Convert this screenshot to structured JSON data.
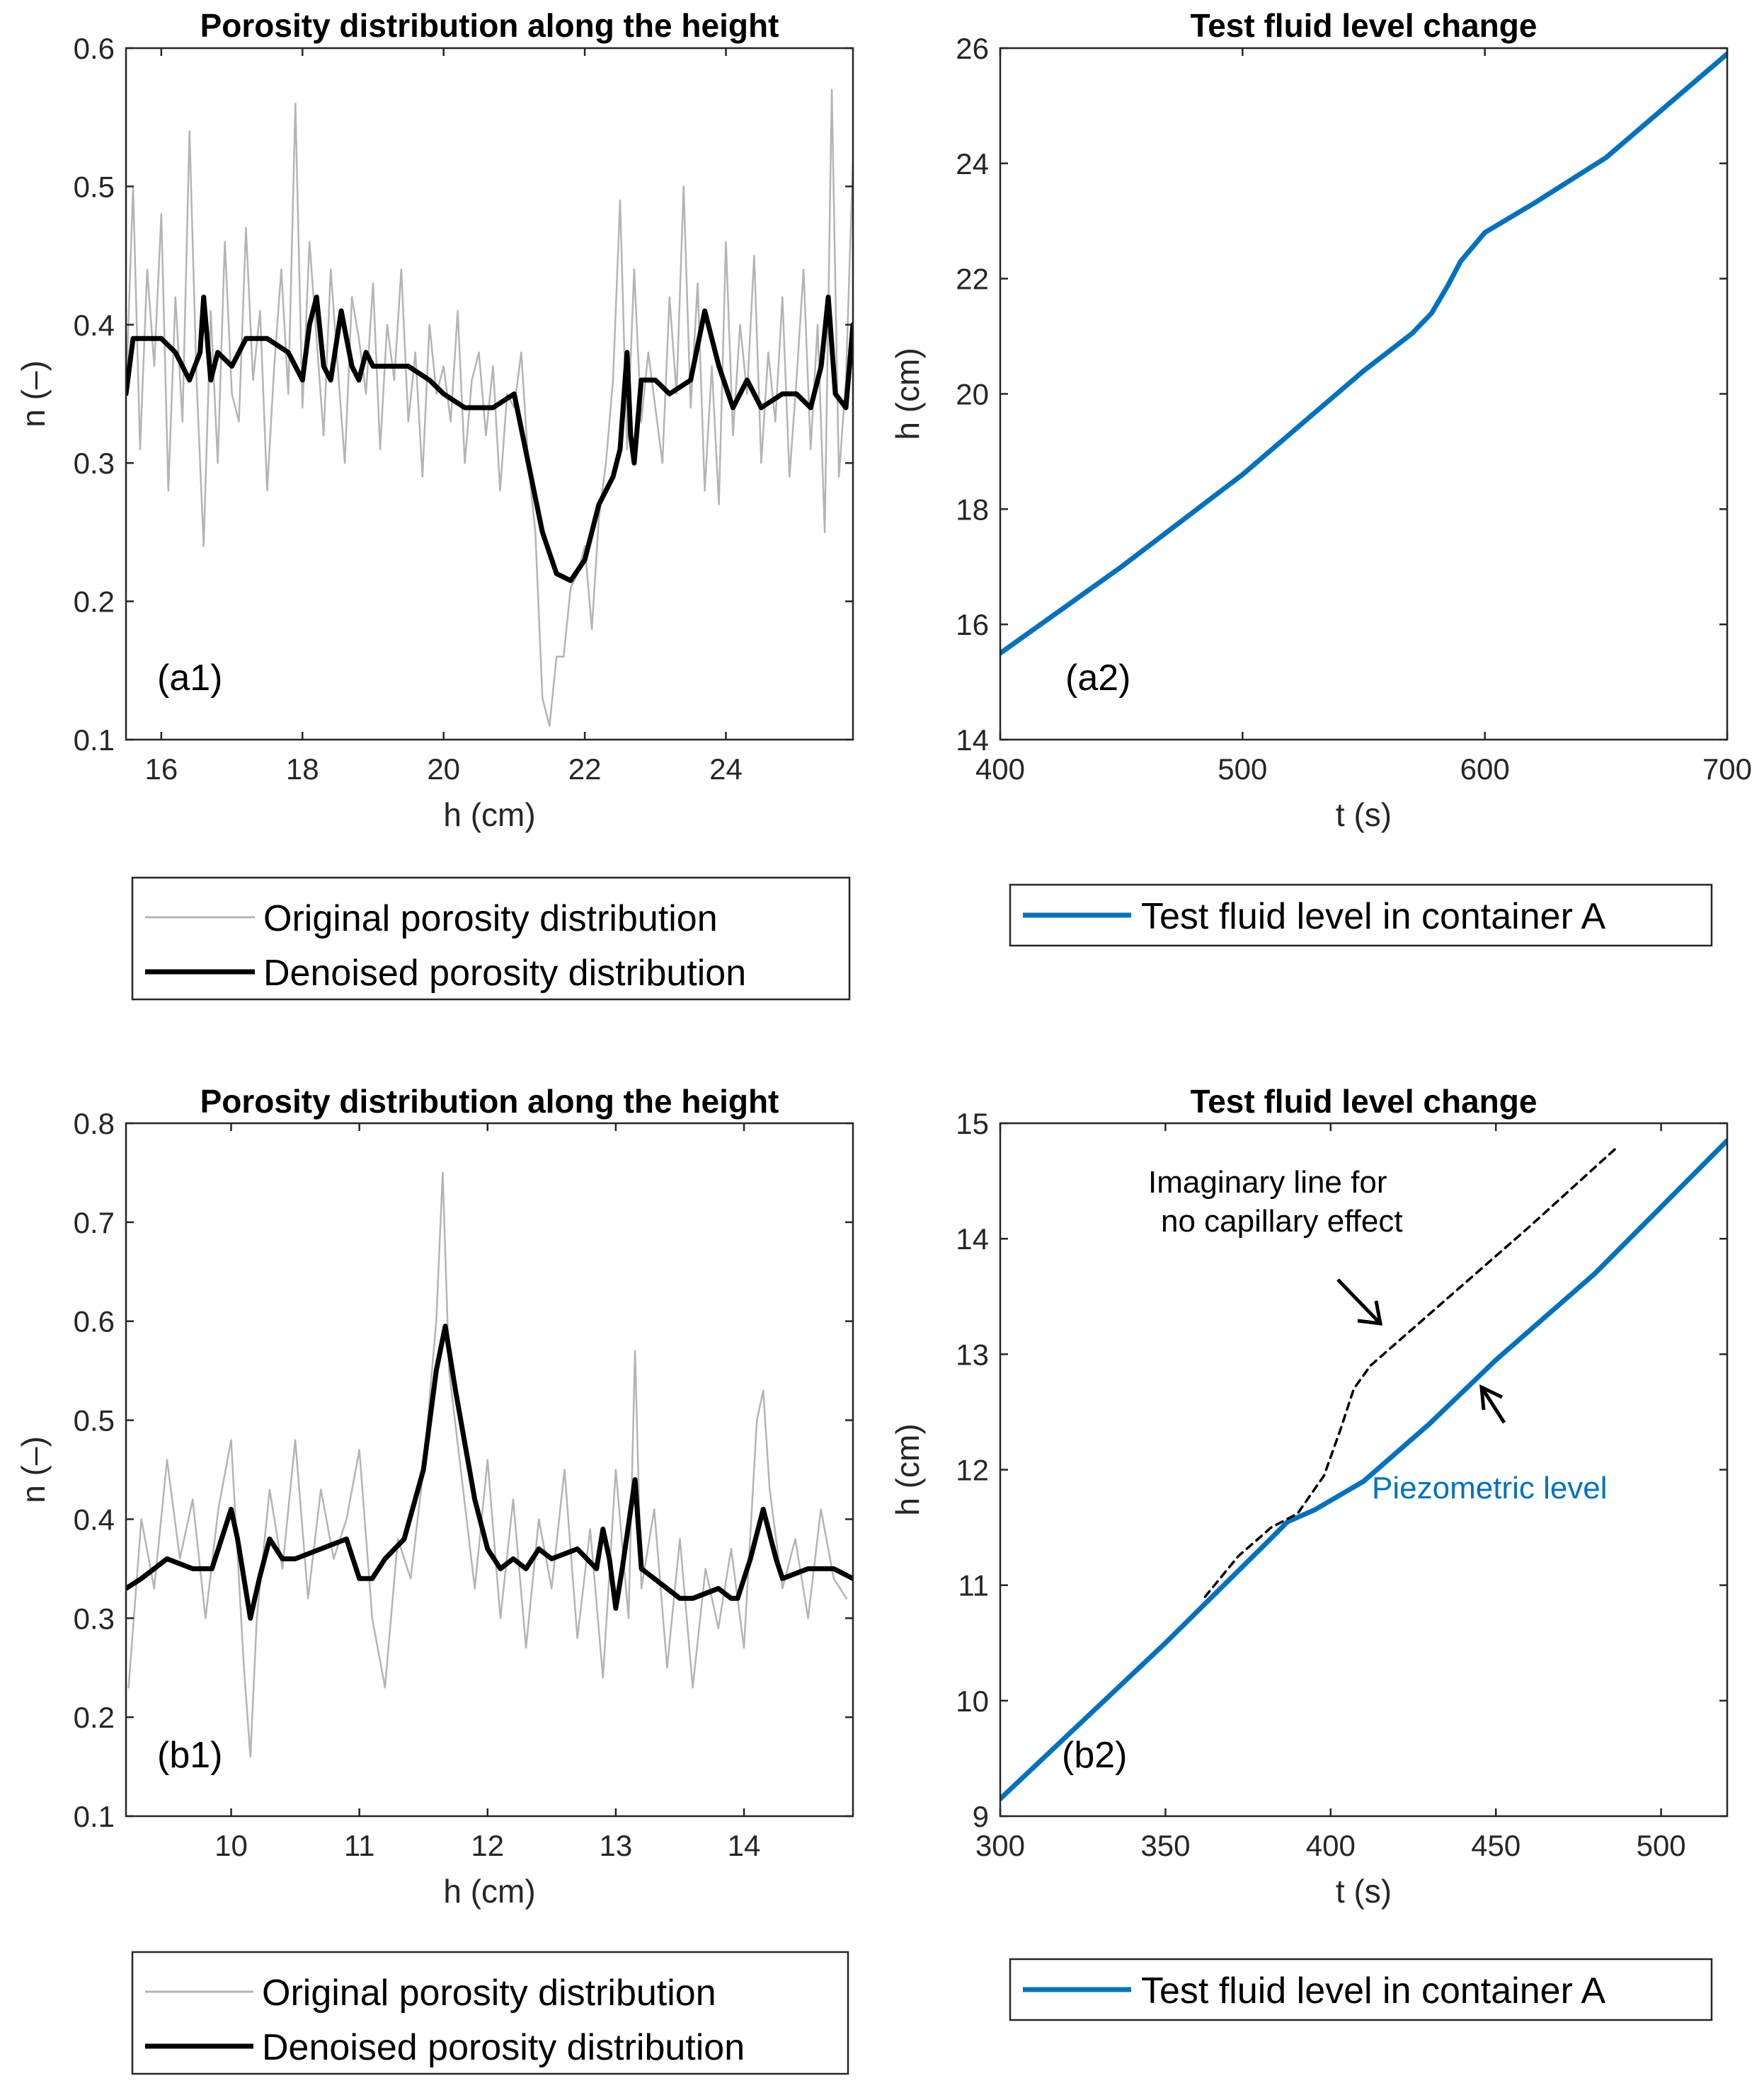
{
  "chart_data": [
    {
      "id": "a1",
      "type": "line",
      "title": "Porosity distribution along the height",
      "panel_label": "(a1)",
      "xlabel": "h (cm)",
      "ylabel": "n (–)",
      "xlim": [
        15.5,
        25.8
      ],
      "ylim": [
        0.1,
        0.6
      ],
      "xticks": [
        16,
        18,
        20,
        22,
        24
      ],
      "yticks": [
        0.1,
        0.2,
        0.3,
        0.4,
        0.5,
        0.6
      ],
      "series": [
        {
          "name": "Original porosity distribution",
          "color": "#b4b4b4",
          "x": [
            15.5,
            15.6,
            15.7,
            15.8,
            15.9,
            16.0,
            16.1,
            16.2,
            16.3,
            16.4,
            16.5,
            16.6,
            16.7,
            16.8,
            16.9,
            17.0,
            17.1,
            17.2,
            17.3,
            17.4,
            17.5,
            17.6,
            17.7,
            17.8,
            17.9,
            18.0,
            18.1,
            18.2,
            18.3,
            18.4,
            18.5,
            18.6,
            18.7,
            18.8,
            18.9,
            19.0,
            19.1,
            19.2,
            19.3,
            19.4,
            19.5,
            19.6,
            19.7,
            19.8,
            19.9,
            20.0,
            20.1,
            20.2,
            20.3,
            20.4,
            20.5,
            20.6,
            20.7,
            20.8,
            20.9,
            21.0,
            21.1,
            21.2,
            21.3,
            21.4,
            21.5,
            21.6,
            21.7,
            21.8,
            21.9,
            22.0,
            22.1,
            22.2,
            22.3,
            22.4,
            22.5,
            22.6,
            22.7,
            22.8,
            22.9,
            23.0,
            23.1,
            23.2,
            23.3,
            23.4,
            23.5,
            23.6,
            23.7,
            23.8,
            23.9,
            24.0,
            24.1,
            24.2,
            24.3,
            24.4,
            24.5,
            24.6,
            24.7,
            24.8,
            24.9,
            25.0,
            25.1,
            25.2,
            25.3,
            25.4,
            25.5,
            25.6,
            25.7,
            25.8
          ],
          "y": [
            0.35,
            0.5,
            0.31,
            0.44,
            0.37,
            0.48,
            0.28,
            0.42,
            0.33,
            0.54,
            0.36,
            0.24,
            0.41,
            0.3,
            0.46,
            0.35,
            0.33,
            0.47,
            0.36,
            0.41,
            0.28,
            0.37,
            0.44,
            0.35,
            0.56,
            0.34,
            0.46,
            0.39,
            0.32,
            0.44,
            0.37,
            0.3,
            0.42,
            0.39,
            0.35,
            0.43,
            0.31,
            0.4,
            0.36,
            0.44,
            0.33,
            0.38,
            0.29,
            0.4,
            0.35,
            0.37,
            0.33,
            0.41,
            0.3,
            0.36,
            0.38,
            0.32,
            0.37,
            0.28,
            0.35,
            0.34,
            0.38,
            0.3,
            0.25,
            0.13,
            0.11,
            0.16,
            0.16,
            0.21,
            0.22,
            0.24,
            0.18,
            0.26,
            0.3,
            0.36,
            0.49,
            0.31,
            0.44,
            0.33,
            0.38,
            0.34,
            0.3,
            0.42,
            0.35,
            0.5,
            0.34,
            0.43,
            0.28,
            0.37,
            0.27,
            0.46,
            0.32,
            0.4,
            0.35,
            0.45,
            0.3,
            0.38,
            0.33,
            0.42,
            0.29,
            0.36,
            0.44,
            0.31,
            0.4,
            0.25,
            0.57,
            0.29,
            0.36,
            0.52
          ]
        },
        {
          "name": "Denoised porosity distribution",
          "color": "#000000",
          "x": [
            15.5,
            15.6,
            15.8,
            16.0,
            16.2,
            16.4,
            16.55,
            16.6,
            16.7,
            16.8,
            17.0,
            17.2,
            17.5,
            17.8,
            18.0,
            18.1,
            18.2,
            18.3,
            18.4,
            18.55,
            18.7,
            18.8,
            18.9,
            19.0,
            19.5,
            19.8,
            20.0,
            20.3,
            20.7,
            21.0,
            21.2,
            21.4,
            21.6,
            21.8,
            22.0,
            22.2,
            22.4,
            22.5,
            22.6,
            22.65,
            22.7,
            22.8,
            23.0,
            23.2,
            23.5,
            23.7,
            23.9,
            24.1,
            24.3,
            24.5,
            24.8,
            25.0,
            25.2,
            25.35,
            25.45,
            25.55,
            25.7,
            25.8
          ],
          "y": [
            0.35,
            0.39,
            0.39,
            0.39,
            0.38,
            0.36,
            0.38,
            0.42,
            0.36,
            0.38,
            0.37,
            0.39,
            0.39,
            0.38,
            0.36,
            0.4,
            0.42,
            0.37,
            0.36,
            0.41,
            0.37,
            0.36,
            0.38,
            0.37,
            0.37,
            0.36,
            0.35,
            0.34,
            0.34,
            0.35,
            0.3,
            0.25,
            0.22,
            0.215,
            0.23,
            0.27,
            0.29,
            0.31,
            0.38,
            0.32,
            0.3,
            0.36,
            0.36,
            0.35,
            0.36,
            0.41,
            0.37,
            0.34,
            0.36,
            0.34,
            0.35,
            0.35,
            0.34,
            0.37,
            0.42,
            0.35,
            0.34,
            0.4
          ]
        }
      ],
      "legend": [
        "Original porosity distribution",
        "Denoised porosity distribution"
      ]
    },
    {
      "id": "a2",
      "type": "line",
      "title": "Test fluid level change",
      "panel_label": "(a2)",
      "xlabel": "t (s)",
      "ylabel": "h (cm)",
      "xlim": [
        400,
        700
      ],
      "ylim": [
        14,
        26
      ],
      "xticks": [
        400,
        500,
        600,
        700
      ],
      "yticks": [
        14,
        16,
        18,
        20,
        22,
        24,
        26
      ],
      "series": [
        {
          "name": "Test fluid level in container A",
          "color": "#0072BD",
          "x": [
            400,
            450,
            500,
            550,
            570,
            578,
            585,
            590,
            600,
            620,
            650,
            700
          ],
          "y": [
            15.5,
            17.0,
            18.6,
            20.4,
            21.05,
            21.4,
            21.9,
            22.3,
            22.8,
            23.3,
            24.1,
            25.9
          ]
        }
      ],
      "legend": [
        "Test fluid level in container A"
      ]
    },
    {
      "id": "b1",
      "type": "line",
      "title": "Porosity distribution along the height",
      "panel_label": "(b1)",
      "xlabel": "h (cm)",
      "ylabel": "n (–)",
      "xlim": [
        9.18,
        14.85
      ],
      "ylim": [
        0.1,
        0.8
      ],
      "xticks": [
        10,
        11,
        12,
        13,
        14
      ],
      "yticks": [
        0.1,
        0.2,
        0.3,
        0.4,
        0.5,
        0.6,
        0.7,
        0.8
      ],
      "series": [
        {
          "name": "Original porosity distribution",
          "color": "#b4b4b4",
          "x": [
            9.2,
            9.3,
            9.4,
            9.5,
            9.6,
            9.7,
            9.8,
            9.9,
            10.0,
            10.1,
            10.15,
            10.2,
            10.3,
            10.4,
            10.5,
            10.6,
            10.7,
            10.8,
            10.9,
            11.0,
            11.1,
            11.2,
            11.3,
            11.4,
            11.5,
            11.6,
            11.65,
            11.7,
            11.8,
            11.9,
            12.0,
            12.1,
            12.2,
            12.3,
            12.4,
            12.5,
            12.6,
            12.7,
            12.8,
            12.9,
            13.0,
            13.1,
            13.15,
            13.2,
            13.3,
            13.4,
            13.5,
            13.6,
            13.7,
            13.8,
            13.9,
            14.0,
            14.1,
            14.15,
            14.2,
            14.3,
            14.4,
            14.5,
            14.6,
            14.7,
            14.8
          ],
          "y": [
            0.23,
            0.4,
            0.33,
            0.46,
            0.36,
            0.42,
            0.3,
            0.41,
            0.48,
            0.25,
            0.16,
            0.3,
            0.43,
            0.35,
            0.48,
            0.32,
            0.43,
            0.36,
            0.4,
            0.47,
            0.3,
            0.23,
            0.38,
            0.34,
            0.45,
            0.6,
            0.75,
            0.55,
            0.44,
            0.33,
            0.46,
            0.3,
            0.42,
            0.27,
            0.4,
            0.33,
            0.45,
            0.28,
            0.39,
            0.24,
            0.45,
            0.3,
            0.57,
            0.33,
            0.41,
            0.25,
            0.38,
            0.23,
            0.35,
            0.29,
            0.37,
            0.27,
            0.5,
            0.53,
            0.43,
            0.33,
            0.38,
            0.3,
            0.41,
            0.34,
            0.32
          ]
        },
        {
          "name": "Denoised porosity distribution",
          "color": "#000000",
          "x": [
            9.18,
            9.3,
            9.5,
            9.7,
            9.85,
            10.0,
            10.05,
            10.15,
            10.22,
            10.3,
            10.4,
            10.5,
            10.7,
            10.9,
            11.0,
            11.1,
            11.2,
            11.35,
            11.5,
            11.6,
            11.67,
            11.75,
            11.9,
            12.0,
            12.1,
            12.2,
            12.3,
            12.4,
            12.5,
            12.7,
            12.85,
            12.9,
            12.95,
            13.0,
            13.05,
            13.15,
            13.2,
            13.3,
            13.5,
            13.6,
            13.8,
            13.9,
            13.95,
            14.05,
            14.15,
            14.25,
            14.3,
            14.5,
            14.7,
            14.85
          ],
          "y": [
            0.33,
            0.34,
            0.36,
            0.35,
            0.35,
            0.41,
            0.38,
            0.3,
            0.34,
            0.38,
            0.36,
            0.36,
            0.37,
            0.38,
            0.34,
            0.34,
            0.36,
            0.38,
            0.45,
            0.55,
            0.595,
            0.53,
            0.42,
            0.37,
            0.35,
            0.36,
            0.35,
            0.37,
            0.36,
            0.37,
            0.35,
            0.39,
            0.36,
            0.31,
            0.35,
            0.44,
            0.35,
            0.34,
            0.32,
            0.32,
            0.33,
            0.32,
            0.32,
            0.36,
            0.41,
            0.36,
            0.34,
            0.35,
            0.35,
            0.34
          ]
        }
      ],
      "legend": [
        "Original porosity distribution",
        "Denoised porosity distribution"
      ]
    },
    {
      "id": "b2",
      "type": "line",
      "title": "Test fluid level change",
      "panel_label": "(b2)",
      "xlabel": "t (s)",
      "ylabel": "h (cm)",
      "xlim": [
        300,
        520
      ],
      "ylim": [
        9,
        15
      ],
      "xticks": [
        300,
        350,
        400,
        450,
        500
      ],
      "yticks": [
        9,
        10,
        11,
        12,
        13,
        14,
        15
      ],
      "series": [
        {
          "name": "Test fluid level in container A",
          "color": "#0072BD",
          "x": [
            300,
            350,
            380,
            387,
            395,
            410,
            430,
            450,
            480,
            520
          ],
          "y": [
            9.15,
            10.5,
            11.35,
            11.55,
            11.65,
            11.9,
            12.4,
            12.95,
            13.7,
            14.85
          ]
        },
        {
          "name": "Imaginary line for no capillary effect",
          "color": "#000000",
          "style": "dashed",
          "x": [
            362,
            372,
            382,
            390,
            398,
            403,
            407,
            412,
            420,
            440,
            460,
            487
          ],
          "y": [
            10.9,
            11.25,
            11.5,
            11.62,
            11.95,
            12.35,
            12.7,
            12.9,
            13.1,
            13.6,
            14.1,
            14.8
          ]
        }
      ],
      "annotations": {
        "imaginary_line": "Imaginary line for\nno capillary effect",
        "imaginary_line_l1": "Imaginary line for",
        "imaginary_line_l2": "no capillary effect",
        "piezometric": "Piezometric level"
      },
      "legend": [
        "Test fluid level in container A"
      ]
    }
  ]
}
